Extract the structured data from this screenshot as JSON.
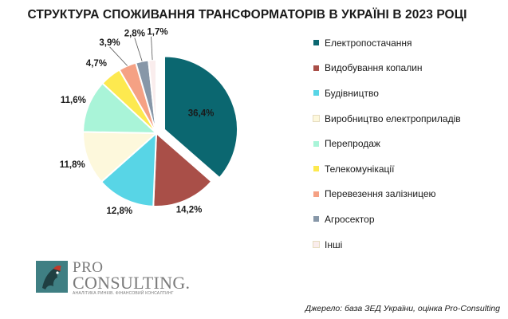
{
  "chart_data": {
    "type": "pie",
    "title": "СТРУКТУРА СПОЖИВАННЯ ТРАНСФОРМАТОРІВ В УКРАЇНІ В 2023 РОЦІ",
    "legend_position": "right",
    "slices": [
      {
        "name": "Електропостачання",
        "value": 36.4,
        "label": "36,4%",
        "color": "#0b6770",
        "exploded": true
      },
      {
        "name": "Видобування копалин",
        "value": 14.2,
        "label": "14,2%",
        "color": "#a94f48"
      },
      {
        "name": "Будівництво",
        "value": 12.8,
        "label": "12,8%",
        "color": "#58d5e6"
      },
      {
        "name": "Виробництво електроприладів",
        "value": 11.8,
        "label": "11,8%",
        "color": "#fdf8dc"
      },
      {
        "name": "Перепродаж",
        "value": 11.6,
        "label": "11,6%",
        "color": "#a9f4d8"
      },
      {
        "name": "Телекомунікації",
        "value": 4.7,
        "label": "4,7%",
        "color": "#fde94f"
      },
      {
        "name": "Перевезення залізницею",
        "value": 3.9,
        "label": "3,9%",
        "color": "#f5a184"
      },
      {
        "name": "Агросектор",
        "value": 2.8,
        "label": "2,8%",
        "color": "#8797a8"
      },
      {
        "name": "Інші",
        "value": 1.7,
        "label": "1,7%",
        "color": "#faeded"
      }
    ]
  },
  "logo": {
    "pro": "PRO",
    "consulting": "CONSULTING.",
    "tagline": "АНАЛІТИКА РИНКІВ. ФІНАНСОВИЙ КОНСАЛТИНГ"
  },
  "source": "Джерело: база ЗЕД України, оцінка Pro-Consulting"
}
